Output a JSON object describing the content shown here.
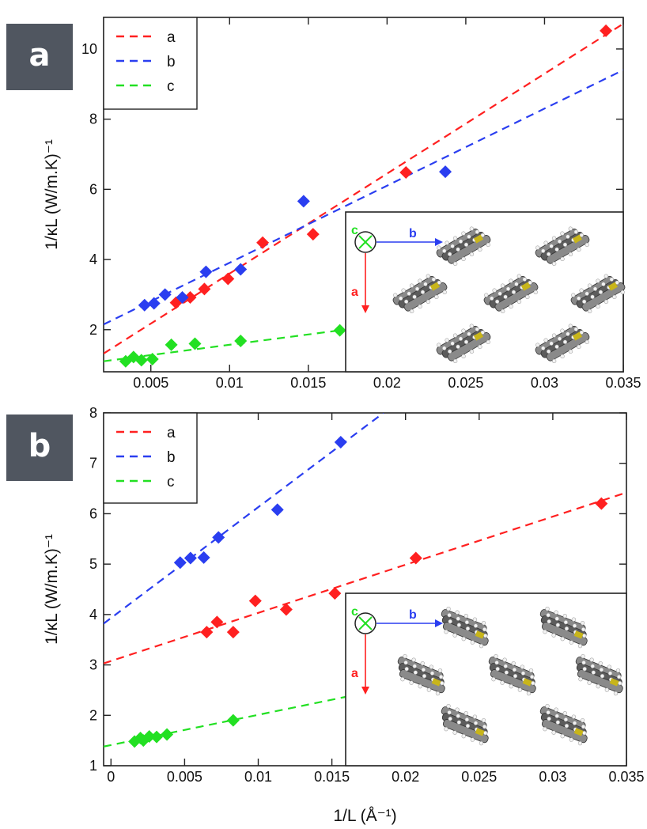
{
  "figure": {
    "panel_labels": [
      "a",
      "b"
    ],
    "shared_xlabel": "1/L (Å⁻¹)"
  },
  "colors": {
    "a": "#ff2020",
    "b": "#2a3ef0",
    "c": "#22e022"
  },
  "chart_data": [
    {
      "type": "scatter",
      "panel": "a",
      "ylabel": "1/κL (W/m.K)⁻¹",
      "xlim": [
        0.002,
        0.035
      ],
      "ylim": [
        0.8,
        10.9
      ],
      "xticks": [
        "0.005",
        "0.01",
        "0.015",
        "0.02",
        "0.025",
        "0.03",
        "0.035"
      ],
      "yticks": [
        "2",
        "4",
        "6",
        "8",
        "10"
      ],
      "legend": {
        "placement": "top-left",
        "entries": [
          "a",
          "b",
          "c"
        ]
      },
      "series": [
        {
          "name": "a",
          "points": [
            [
              0.0066,
              2.77
            ],
            [
              0.0075,
              2.92
            ],
            [
              0.0084,
              3.16
            ],
            [
              0.0099,
              3.45
            ],
            [
              0.0121,
              4.48
            ],
            [
              0.0153,
              4.72
            ],
            [
              0.0212,
              6.48
            ],
            [
              0.0339,
              10.52
            ]
          ],
          "fit": [
            [
              0.002,
              1.32
            ],
            [
              0.035,
              10.72
            ]
          ]
        },
        {
          "name": "b",
          "points": [
            [
              0.0046,
              2.7
            ],
            [
              0.0052,
              2.75
            ],
            [
              0.0059,
              3.0
            ],
            [
              0.007,
              2.92
            ],
            [
              0.0085,
              3.65
            ],
            [
              0.0107,
              3.72
            ],
            [
              0.0147,
              5.66
            ],
            [
              0.0237,
              6.5
            ]
          ],
          "fit": [
            [
              0.002,
              2.15
            ],
            [
              0.035,
              9.4
            ]
          ]
        },
        {
          "name": "c",
          "points": [
            [
              0.0034,
              1.1
            ],
            [
              0.0039,
              1.22
            ],
            [
              0.0044,
              1.13
            ],
            [
              0.0051,
              1.16
            ],
            [
              0.0063,
              1.57
            ],
            [
              0.0078,
              1.6
            ],
            [
              0.0107,
              1.68
            ],
            [
              0.017,
              1.98
            ]
          ],
          "fit": [
            [
              0.002,
              1.1
            ],
            [
              0.0168,
              1.97
            ]
          ]
        }
      ],
      "inset": {
        "labels": [
          "c",
          "b",
          "a"
        ]
      }
    },
    {
      "type": "scatter",
      "panel": "b",
      "ylabel": "1/κL (W/m.K)⁻¹",
      "xlabel": "1/L (Å⁻¹)",
      "xlim": [
        -0.0005,
        0.035
      ],
      "ylim": [
        1.0,
        8.0
      ],
      "xticks": [
        "0",
        "0.005",
        "0.01",
        "0.015",
        "0.02",
        "0.025",
        "0.03",
        "0.035"
      ],
      "yticks": [
        "1",
        "2",
        "3",
        "4",
        "5",
        "6",
        "7",
        "8"
      ],
      "legend": {
        "placement": "top-left",
        "entries": [
          "a",
          "b",
          "c"
        ]
      },
      "series": [
        {
          "name": "a",
          "points": [
            [
              0.0065,
              3.65
            ],
            [
              0.0072,
              3.85
            ],
            [
              0.0083,
              3.65
            ],
            [
              0.0098,
              4.27
            ],
            [
              0.0119,
              4.1
            ],
            [
              0.0152,
              4.42
            ],
            [
              0.0207,
              5.12
            ],
            [
              0.0333,
              6.2
            ]
          ],
          "fit": [
            [
              -0.0005,
              3.03
            ],
            [
              0.035,
              6.42
            ]
          ]
        },
        {
          "name": "b",
          "points": [
            [
              0.0047,
              5.03
            ],
            [
              0.0054,
              5.12
            ],
            [
              0.0063,
              5.13
            ],
            [
              0.0073,
              5.53
            ],
            [
              0.0113,
              6.08
            ],
            [
              0.0156,
              7.42
            ]
          ],
          "fit": [
            [
              -0.0005,
              3.82
            ],
            [
              0.0185,
              8.0
            ]
          ]
        },
        {
          "name": "c",
          "points": [
            [
              0.0016,
              1.48
            ],
            [
              0.002,
              1.55
            ],
            [
              0.0022,
              1.5
            ],
            [
              0.0026,
              1.58
            ],
            [
              0.0031,
              1.57
            ],
            [
              0.0038,
              1.62
            ],
            [
              0.0083,
              1.9
            ]
          ],
          "fit": [
            [
              -0.0005,
              1.38
            ],
            [
              0.0165,
              2.4
            ]
          ]
        }
      ],
      "inset": {
        "labels": [
          "c",
          "b",
          "a"
        ]
      }
    }
  ]
}
